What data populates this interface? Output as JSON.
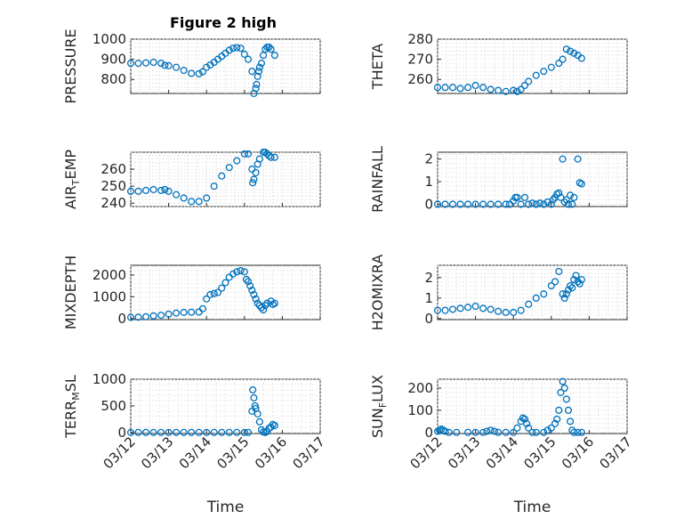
{
  "title": "Figure 2 high",
  "colors": {
    "marker": "#0072BD",
    "axes": "#262626",
    "grid": "#d9d9d9"
  },
  "chart_data": [
    {
      "type": "scatter",
      "panel": "top-left",
      "ylabel": "PRESSURE",
      "ylim": [
        730,
        1000
      ],
      "yticks": [
        800,
        900,
        1000
      ],
      "xlim": [
        0,
        5
      ],
      "xticks": [
        "03/12",
        "03/13",
        "03/14",
        "03/15",
        "03/16",
        "03/17"
      ],
      "show_xticks": false,
      "grid": true,
      "marker": "open-circle",
      "x": [
        0.0,
        0.2,
        0.4,
        0.6,
        0.8,
        0.9,
        1.0,
        1.2,
        1.4,
        1.6,
        1.8,
        1.9,
        2.0,
        2.1,
        2.2,
        2.3,
        2.4,
        2.5,
        2.6,
        2.7,
        2.8,
        2.9,
        3.0,
        3.1,
        3.2,
        3.25,
        3.3,
        3.32,
        3.35,
        3.38,
        3.4,
        3.45,
        3.5,
        3.55,
        3.6,
        3.65,
        3.7,
        3.8
      ],
      "y": [
        880,
        880,
        882,
        885,
        880,
        870,
        868,
        860,
        845,
        830,
        828,
        838,
        860,
        872,
        885,
        900,
        915,
        930,
        945,
        955,
        958,
        955,
        925,
        900,
        840,
        730,
        755,
        775,
        815,
        840,
        860,
        880,
        920,
        950,
        960,
        960,
        950,
        920
      ]
    },
    {
      "type": "scatter",
      "panel": "top-right",
      "ylabel": "THETA",
      "ylim": [
        253,
        280
      ],
      "yticks": [
        260,
        270,
        280
      ],
      "xlim": [
        0,
        5
      ],
      "xticks": [
        "03/12",
        "03/13",
        "03/14",
        "03/15",
        "03/16",
        "03/17"
      ],
      "show_xticks": false,
      "grid": true,
      "marker": "open-circle",
      "x": [
        0.0,
        0.2,
        0.4,
        0.6,
        0.8,
        1.0,
        1.2,
        1.4,
        1.6,
        1.8,
        2.0,
        2.1,
        2.2,
        2.3,
        2.4,
        2.6,
        2.8,
        3.0,
        3.2,
        3.3,
        3.4,
        3.5,
        3.6,
        3.7,
        3.8
      ],
      "y": [
        256,
        256,
        256,
        255.5,
        256,
        257,
        256,
        255,
        254.5,
        254,
        254.5,
        254,
        255,
        257,
        259,
        262,
        264,
        266,
        268,
        270,
        275,
        274,
        273,
        272,
        270.5
      ]
    },
    {
      "type": "scatter",
      "panel": "middle-left-1",
      "ylabel": "AIR_TEMP",
      "ylim": [
        238,
        270
      ],
      "yticks": [
        240,
        250,
        260
      ],
      "xlim": [
        0,
        5
      ],
      "xticks": [
        "03/12",
        "03/13",
        "03/14",
        "03/15",
        "03/16",
        "03/17"
      ],
      "show_xticks": false,
      "grid": true,
      "marker": "open-circle",
      "x": [
        0.0,
        0.2,
        0.4,
        0.6,
        0.8,
        0.9,
        1.0,
        1.2,
        1.4,
        1.6,
        1.8,
        2.0,
        2.2,
        2.4,
        2.6,
        2.8,
        3.0,
        3.1,
        3.2,
        3.22,
        3.25,
        3.3,
        3.35,
        3.4,
        3.5,
        3.55,
        3.6,
        3.65,
        3.7,
        3.8
      ],
      "y": [
        247,
        247,
        247.5,
        248,
        247.5,
        248,
        247,
        245,
        243,
        241,
        241,
        243,
        250,
        256,
        261,
        265,
        269,
        269,
        260,
        252,
        254,
        258,
        263,
        266,
        270,
        270,
        269,
        268,
        267,
        267
      ]
    },
    {
      "type": "scatter",
      "panel": "middle-right-1",
      "ylabel": "RAINFALL",
      "ylim": [
        -0.1,
        2.3
      ],
      "yticks": [
        0,
        1,
        2
      ],
      "xlim": [
        0,
        5
      ],
      "xticks": [
        "03/12",
        "03/13",
        "03/14",
        "03/15",
        "03/16",
        "03/17"
      ],
      "show_xticks": false,
      "grid": true,
      "marker": "open-circle",
      "x": [
        0.0,
        0.2,
        0.4,
        0.6,
        0.8,
        1.0,
        1.2,
        1.4,
        1.6,
        1.8,
        1.9,
        2.0,
        2.05,
        2.1,
        2.2,
        2.3,
        2.4,
        2.5,
        2.6,
        2.7,
        2.8,
        2.9,
        3.0,
        3.05,
        3.1,
        3.15,
        3.2,
        3.25,
        3.3,
        3.35,
        3.4,
        3.45,
        3.5,
        3.55,
        3.6,
        3.7,
        3.75,
        3.8
      ],
      "y": [
        0,
        0,
        0,
        0,
        0,
        0,
        0,
        0,
        0,
        0,
        0,
        0.15,
        0.3,
        0.3,
        0,
        0.3,
        0,
        0.05,
        0,
        0.05,
        0,
        0.1,
        0,
        0.2,
        0.3,
        0.45,
        0.5,
        0.3,
        2.0,
        0.1,
        0.2,
        0,
        0.4,
        0,
        0.3,
        2.0,
        0.95,
        0.9
      ]
    },
    {
      "type": "scatter",
      "panel": "middle-left-2",
      "ylabel": "MIXDEPTH",
      "ylim": [
        -50,
        2450
      ],
      "yticks": [
        0,
        1000,
        2000
      ],
      "xlim": [
        0,
        5
      ],
      "xticks": [
        "03/12",
        "03/13",
        "03/14",
        "03/15",
        "03/16",
        "03/17"
      ],
      "show_xticks": false,
      "grid": true,
      "marker": "open-circle",
      "x": [
        0.0,
        0.2,
        0.4,
        0.6,
        0.8,
        1.0,
        1.2,
        1.4,
        1.6,
        1.8,
        1.9,
        2.0,
        2.1,
        2.2,
        2.3,
        2.4,
        2.5,
        2.6,
        2.7,
        2.8,
        2.9,
        3.0,
        3.05,
        3.1,
        3.15,
        3.2,
        3.25,
        3.3,
        3.35,
        3.4,
        3.45,
        3.5,
        3.55,
        3.6,
        3.7,
        3.75,
        3.8
      ],
      "y": [
        50,
        60,
        80,
        120,
        150,
        200,
        250,
        280,
        290,
        300,
        450,
        900,
        1100,
        1150,
        1200,
        1400,
        1650,
        1900,
        2050,
        2150,
        2200,
        2150,
        1800,
        1700,
        1500,
        1300,
        1100,
        900,
        700,
        600,
        500,
        400,
        600,
        700,
        800,
        650,
        700
      ]
    },
    {
      "type": "scatter",
      "panel": "middle-right-2",
      "ylabel": "H2OMIXRA",
      "ylim": [
        -0.05,
        2.6
      ],
      "yticks": [
        0,
        1,
        2
      ],
      "xlim": [
        0,
        5
      ],
      "xticks": [
        "03/12",
        "03/13",
        "03/14",
        "03/15",
        "03/16",
        "03/17"
      ],
      "show_xticks": false,
      "grid": true,
      "marker": "open-circle",
      "x": [
        0.0,
        0.2,
        0.4,
        0.6,
        0.8,
        1.0,
        1.2,
        1.4,
        1.6,
        1.8,
        2.0,
        2.2,
        2.4,
        2.6,
        2.8,
        3.0,
        3.1,
        3.2,
        3.3,
        3.35,
        3.4,
        3.45,
        3.5,
        3.55,
        3.6,
        3.65,
        3.7,
        3.75,
        3.8
      ],
      "y": [
        0.4,
        0.4,
        0.45,
        0.5,
        0.55,
        0.6,
        0.5,
        0.45,
        0.35,
        0.3,
        0.3,
        0.4,
        0.7,
        1.0,
        1.2,
        1.6,
        1.8,
        2.3,
        1.2,
        1.0,
        1.2,
        1.4,
        1.6,
        1.5,
        1.9,
        2.1,
        1.8,
        1.7,
        1.9
      ]
    },
    {
      "type": "scatter",
      "panel": "bottom-left",
      "ylabel": "TERR_MSL",
      "ylim": [
        -20,
        1000
      ],
      "yticks": [
        0,
        500,
        1000
      ],
      "xlim": [
        0,
        5
      ],
      "xticks": [
        "03/12",
        "03/13",
        "03/14",
        "03/15",
        "03/16",
        "03/17"
      ],
      "show_xticks": true,
      "xlabel": "Time",
      "grid": true,
      "marker": "open-circle",
      "x": [
        0.0,
        0.2,
        0.4,
        0.6,
        0.8,
        1.0,
        1.2,
        1.4,
        1.6,
        1.8,
        2.0,
        2.2,
        2.4,
        2.6,
        2.8,
        3.0,
        3.1,
        3.2,
        3.22,
        3.25,
        3.28,
        3.3,
        3.35,
        3.4,
        3.45,
        3.5,
        3.55,
        3.6,
        3.65,
        3.7,
        3.75,
        3.8
      ],
      "y": [
        0,
        0,
        0,
        0,
        0,
        0,
        0,
        0,
        0,
        0,
        0,
        0,
        0,
        0,
        0,
        0,
        0,
        400,
        800,
        650,
        500,
        450,
        350,
        200,
        50,
        10,
        0,
        20,
        80,
        100,
        150,
        130
      ]
    },
    {
      "type": "scatter",
      "panel": "bottom-right",
      "ylabel": "SUN_FLUX",
      "ylim": [
        -5,
        240
      ],
      "yticks": [
        0,
        100,
        200
      ],
      "xlim": [
        0,
        5
      ],
      "xticks": [
        "03/12",
        "03/13",
        "03/14",
        "03/15",
        "03/16",
        "03/17"
      ],
      "show_xticks": true,
      "xlabel": "Time",
      "grid": true,
      "marker": "open-circle",
      "x": [
        0.0,
        0.05,
        0.1,
        0.15,
        0.2,
        0.3,
        0.5,
        0.8,
        1.0,
        1.2,
        1.3,
        1.4,
        1.5,
        1.6,
        1.8,
        2.0,
        2.1,
        2.2,
        2.25,
        2.3,
        2.35,
        2.4,
        2.5,
        2.6,
        2.8,
        2.9,
        3.0,
        3.1,
        3.15,
        3.2,
        3.25,
        3.3,
        3.35,
        3.4,
        3.45,
        3.5,
        3.55,
        3.6,
        3.7,
        3.8
      ],
      "y": [
        5,
        10,
        15,
        10,
        5,
        0,
        0,
        0,
        0,
        0,
        5,
        10,
        5,
        0,
        0,
        0,
        20,
        50,
        65,
        60,
        40,
        20,
        0,
        0,
        0,
        10,
        20,
        40,
        60,
        100,
        180,
        230,
        200,
        150,
        100,
        50,
        10,
        0,
        0,
        0
      ]
    }
  ]
}
